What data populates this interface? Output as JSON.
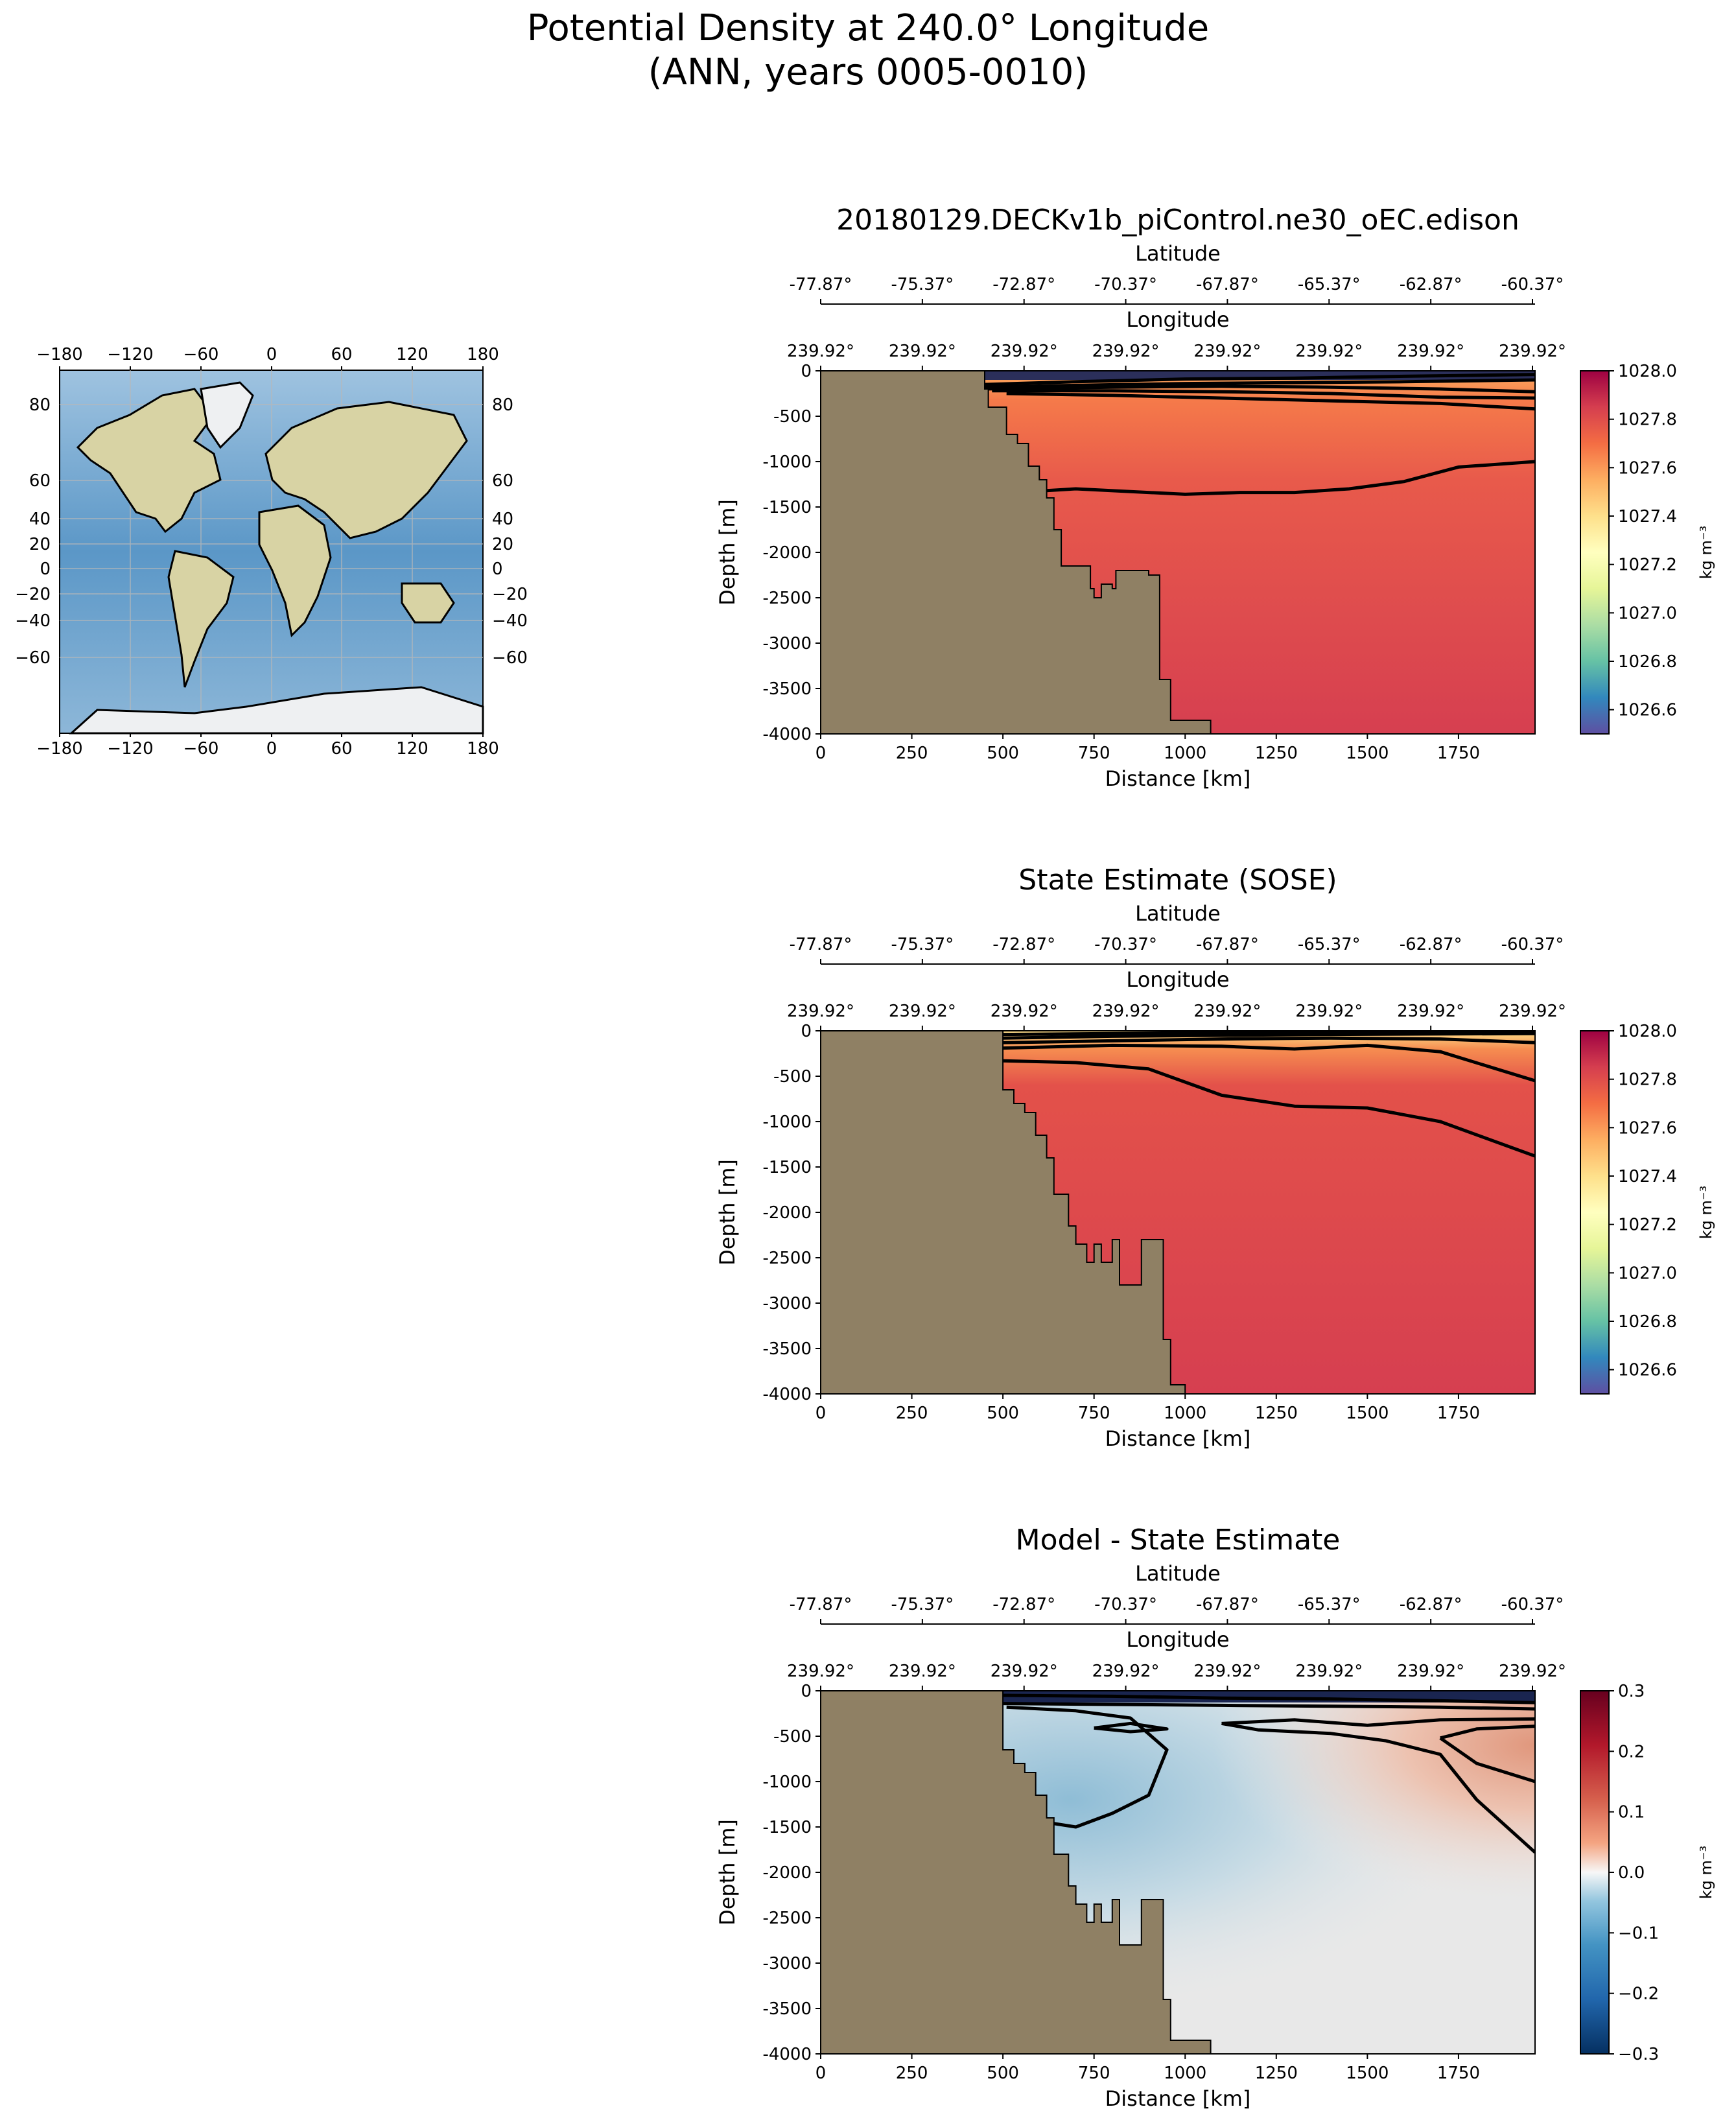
{
  "title_line1": "Potential Density at 240.0° Longitude",
  "title_line2": "(ANN, years 0005-0010)",
  "map": {
    "lon_ticks": [
      "−180",
      "−120",
      "−60",
      "0",
      "60",
      "120",
      "180"
    ],
    "lat_ticks_left": [
      "80",
      "60",
      "40",
      "20",
      "0",
      "−20",
      "−40",
      "−60"
    ],
    "lat_ticks_right": [
      "80",
      "60",
      "40",
      "20",
      "0",
      "−20",
      "−40",
      "−60"
    ]
  },
  "colors": {
    "land": "#8f8064",
    "ocean": "#6ea4cc",
    "contour": "#000000"
  },
  "chart_data": [
    {
      "type": "heatmap",
      "title": "20180129.DECKv1b_piControl.ne30_oEC.edison",
      "xlabel": "Distance [km]",
      "ylabel": "Depth [m]",
      "top_axis1_label": "Latitude",
      "top_axis1_ticks": [
        "-77.87°",
        "-75.37°",
        "-72.87°",
        "-70.37°",
        "-67.87°",
        "-65.37°",
        "-62.87°",
        "-60.37°"
      ],
      "top_axis2_label": "Longitude",
      "top_axis2_ticks": [
        "239.92°",
        "239.92°",
        "239.92°",
        "239.92°",
        "239.92°",
        "239.92°",
        "239.92°",
        "239.92°"
      ],
      "x_ticks": [
        "0",
        "250",
        "500",
        "750",
        "1000",
        "1250",
        "1500",
        "1750"
      ],
      "y_ticks": [
        "0",
        "-500",
        "-1000",
        "-1500",
        "-2000",
        "-2500",
        "-3000",
        "-3500",
        "-4000"
      ],
      "xlim": [
        0,
        1960
      ],
      "ylim": [
        -4000,
        0
      ],
      "colorbar": {
        "label": "kg m⁻³",
        "min": 1026.5,
        "max": 1028.0,
        "ticks": [
          "1026.6",
          "1026.8",
          "1027.0",
          "1027.2",
          "1027.4",
          "1027.6",
          "1027.8",
          "1028.0"
        ],
        "tick_values": [
          1026.6,
          1026.8,
          1027.0,
          1027.2,
          1027.4,
          1027.6,
          1027.8,
          1028.0
        ],
        "colormap": "Spectral_r"
      },
      "topography": [
        [
          0,
          0
        ],
        [
          450,
          0
        ],
        [
          450,
          -200
        ],
        [
          460,
          -200
        ],
        [
          460,
          -400
        ],
        [
          510,
          -400
        ],
        [
          510,
          -700
        ],
        [
          540,
          -700
        ],
        [
          540,
          -800
        ],
        [
          570,
          -800
        ],
        [
          570,
          -1050
        ],
        [
          600,
          -1050
        ],
        [
          600,
          -1200
        ],
        [
          620,
          -1200
        ],
        [
          620,
          -1400
        ],
        [
          640,
          -1400
        ],
        [
          640,
          -1750
        ],
        [
          660,
          -1750
        ],
        [
          660,
          -2150
        ],
        [
          740,
          -2150
        ],
        [
          740,
          -2400
        ],
        [
          750,
          -2400
        ],
        [
          750,
          -2500
        ],
        [
          770,
          -2500
        ],
        [
          770,
          -2350
        ],
        [
          800,
          -2350
        ],
        [
          800,
          -2400
        ],
        [
          810,
          -2400
        ],
        [
          810,
          -2200
        ],
        [
          830,
          -2200
        ],
        [
          830,
          -2200
        ],
        [
          900,
          -2200
        ],
        [
          900,
          -2250
        ],
        [
          930,
          -2250
        ],
        [
          930,
          -3400
        ],
        [
          960,
          -3400
        ],
        [
          960,
          -3850
        ],
        [
          1070,
          -3850
        ],
        [
          1070,
          -4000
        ],
        [
          0,
          -4000
        ]
      ],
      "contours": [
        [
          [
            450,
            -150
          ],
          [
            700,
            -120
          ],
          [
            1000,
            -90
          ],
          [
            1300,
            -80
          ],
          [
            1600,
            -60
          ],
          [
            1960,
            -40
          ]
        ],
        [
          [
            450,
            -180
          ],
          [
            700,
            -160
          ],
          [
            1000,
            -140
          ],
          [
            1300,
            -130
          ],
          [
            1600,
            -120
          ],
          [
            1960,
            -100
          ]
        ],
        [
          [
            450,
            -200
          ],
          [
            800,
            -180
          ],
          [
            1100,
            -170
          ],
          [
            1400,
            -180
          ],
          [
            1700,
            -200
          ],
          [
            1960,
            -230
          ]
        ],
        [
          [
            470,
            -220
          ],
          [
            800,
            -220
          ],
          [
            1100,
            -230
          ],
          [
            1400,
            -250
          ],
          [
            1700,
            -290
          ],
          [
            1960,
            -300
          ]
        ],
        [
          [
            510,
            -250
          ],
          [
            800,
            -270
          ],
          [
            1100,
            -300
          ],
          [
            1400,
            -330
          ],
          [
            1700,
            -360
          ],
          [
            1960,
            -420
          ]
        ],
        [
          [
            620,
            -1320
          ],
          [
            700,
            -1300
          ],
          [
            850,
            -1330
          ],
          [
            1000,
            -1360
          ],
          [
            1150,
            -1340
          ],
          [
            1300,
            -1340
          ],
          [
            1450,
            -1300
          ],
          [
            1600,
            -1220
          ],
          [
            1750,
            -1060
          ],
          [
            1960,
            -1000
          ]
        ]
      ],
      "field_note": "uniform ~1027.8 below 500 m; lighter near surface"
    },
    {
      "type": "heatmap",
      "title": "State Estimate (SOSE)",
      "xlabel": "Distance [km]",
      "ylabel": "Depth [m]",
      "top_axis1_label": "Latitude",
      "top_axis1_ticks": [
        "-77.87°",
        "-75.37°",
        "-72.87°",
        "-70.37°",
        "-67.87°",
        "-65.37°",
        "-62.87°",
        "-60.37°"
      ],
      "top_axis2_label": "Longitude",
      "top_axis2_ticks": [
        "239.92°",
        "239.92°",
        "239.92°",
        "239.92°",
        "239.92°",
        "239.92°",
        "239.92°",
        "239.92°"
      ],
      "x_ticks": [
        "0",
        "250",
        "500",
        "750",
        "1000",
        "1250",
        "1500",
        "1750"
      ],
      "y_ticks": [
        "0",
        "-500",
        "-1000",
        "-1500",
        "-2000",
        "-2500",
        "-3000",
        "-3500",
        "-4000"
      ],
      "xlim": [
        0,
        1960
      ],
      "ylim": [
        -4000,
        0
      ],
      "colorbar": {
        "label": "kg m⁻³",
        "min": 1026.5,
        "max": 1028.0,
        "ticks": [
          "1026.6",
          "1026.8",
          "1027.0",
          "1027.2",
          "1027.4",
          "1027.6",
          "1027.8",
          "1028.0"
        ],
        "tick_values": [
          1026.6,
          1026.8,
          1027.0,
          1027.2,
          1027.4,
          1027.6,
          1027.8,
          1028.0
        ],
        "colormap": "Spectral_r"
      },
      "topography": [
        [
          0,
          0
        ],
        [
          500,
          0
        ],
        [
          500,
          -650
        ],
        [
          530,
          -650
        ],
        [
          530,
          -800
        ],
        [
          560,
          -800
        ],
        [
          560,
          -900
        ],
        [
          590,
          -900
        ],
        [
          590,
          -1150
        ],
        [
          620,
          -1150
        ],
        [
          620,
          -1400
        ],
        [
          640,
          -1400
        ],
        [
          640,
          -1800
        ],
        [
          680,
          -1800
        ],
        [
          680,
          -2150
        ],
        [
          700,
          -2150
        ],
        [
          700,
          -2350
        ],
        [
          730,
          -2350
        ],
        [
          730,
          -2550
        ],
        [
          750,
          -2550
        ],
        [
          750,
          -2350
        ],
        [
          770,
          -2350
        ],
        [
          770,
          -2550
        ],
        [
          800,
          -2550
        ],
        [
          800,
          -2300
        ],
        [
          820,
          -2300
        ],
        [
          820,
          -2800
        ],
        [
          880,
          -2800
        ],
        [
          880,
          -2300
        ],
        [
          940,
          -2300
        ],
        [
          940,
          -3400
        ],
        [
          960,
          -3400
        ],
        [
          960,
          -3900
        ],
        [
          1000,
          -3900
        ],
        [
          1000,
          -4000
        ],
        [
          0,
          -4000
        ]
      ],
      "contours": [
        [
          [
            500,
            -40
          ],
          [
            800,
            -30
          ],
          [
            1100,
            -20
          ],
          [
            1400,
            -15
          ],
          [
            1960,
            -10
          ]
        ],
        [
          [
            500,
            -80
          ],
          [
            800,
            -60
          ],
          [
            1100,
            -50
          ],
          [
            1400,
            -40
          ],
          [
            1960,
            -30
          ]
        ],
        [
          [
            500,
            -130
          ],
          [
            800,
            -110
          ],
          [
            1100,
            -90
          ],
          [
            1400,
            -80
          ],
          [
            1700,
            -90
          ],
          [
            1960,
            -130
          ]
        ],
        [
          [
            500,
            -190
          ],
          [
            800,
            -160
          ],
          [
            1100,
            -170
          ],
          [
            1300,
            -200
          ],
          [
            1500,
            -160
          ],
          [
            1700,
            -230
          ],
          [
            1960,
            -550
          ]
        ],
        [
          [
            500,
            -330
          ],
          [
            700,
            -350
          ],
          [
            900,
            -420
          ],
          [
            1100,
            -710
          ],
          [
            1300,
            -830
          ],
          [
            1500,
            -850
          ],
          [
            1700,
            -1000
          ],
          [
            1960,
            -1380
          ]
        ]
      ],
      "field_note": "uniform ~1027.8 below 500 m; lighter near surface"
    },
    {
      "type": "heatmap",
      "title": "Model - State Estimate",
      "xlabel": "Distance [km]",
      "ylabel": "Depth [m]",
      "top_axis1_label": "Latitude",
      "top_axis1_ticks": [
        "-77.87°",
        "-75.37°",
        "-72.87°",
        "-70.37°",
        "-67.87°",
        "-65.37°",
        "-62.87°",
        "-60.37°"
      ],
      "top_axis2_label": "Longitude",
      "top_axis2_ticks": [
        "239.92°",
        "239.92°",
        "239.92°",
        "239.92°",
        "239.92°",
        "239.92°",
        "239.92°",
        "239.92°"
      ],
      "x_ticks": [
        "0",
        "250",
        "500",
        "750",
        "1000",
        "1250",
        "1500",
        "1750"
      ],
      "y_ticks": [
        "0",
        "-500",
        "-1000",
        "-1500",
        "-2000",
        "-2500",
        "-3000",
        "-3500",
        "-4000"
      ],
      "xlim": [
        0,
        1960
      ],
      "ylim": [
        -4000,
        0
      ],
      "colorbar": {
        "label": "kg m⁻³",
        "min": -0.3,
        "max": 0.3,
        "ticks": [
          "0.3",
          "0.2",
          "0.1",
          "0.0",
          "−0.1",
          "−0.2",
          "−0.3"
        ],
        "tick_values": [
          0.3,
          0.2,
          0.1,
          0.0,
          -0.1,
          -0.2,
          -0.3
        ],
        "colormap": "RdBu_r"
      },
      "topography": [
        [
          0,
          0
        ],
        [
          500,
          0
        ],
        [
          500,
          -650
        ],
        [
          530,
          -650
        ],
        [
          530,
          -800
        ],
        [
          560,
          -800
        ],
        [
          560,
          -900
        ],
        [
          590,
          -900
        ],
        [
          590,
          -1150
        ],
        [
          620,
          -1150
        ],
        [
          620,
          -1400
        ],
        [
          640,
          -1400
        ],
        [
          640,
          -1800
        ],
        [
          680,
          -1800
        ],
        [
          680,
          -2150
        ],
        [
          700,
          -2150
        ],
        [
          700,
          -2350
        ],
        [
          730,
          -2350
        ],
        [
          730,
          -2550
        ],
        [
          750,
          -2550
        ],
        [
          750,
          -2350
        ],
        [
          770,
          -2350
        ],
        [
          770,
          -2550
        ],
        [
          800,
          -2550
        ],
        [
          800,
          -2300
        ],
        [
          820,
          -2300
        ],
        [
          820,
          -2800
        ],
        [
          880,
          -2800
        ],
        [
          880,
          -2300
        ],
        [
          940,
          -2300
        ],
        [
          940,
          -3400
        ],
        [
          960,
          -3400
        ],
        [
          960,
          -3850
        ],
        [
          1070,
          -3850
        ],
        [
          1070,
          -4000
        ],
        [
          0,
          -4000
        ]
      ],
      "contours": [
        [
          [
            500,
            -50
          ],
          [
            800,
            -60
          ],
          [
            1100,
            -80
          ],
          [
            1400,
            -90
          ],
          [
            1700,
            -110
          ],
          [
            1960,
            -130
          ]
        ],
        [
          [
            500,
            -140
          ],
          [
            800,
            -150
          ],
          [
            1100,
            -160
          ],
          [
            1400,
            -170
          ],
          [
            1700,
            -180
          ],
          [
            1960,
            -200
          ]
        ],
        [
          [
            510,
            -180
          ],
          [
            700,
            -220
          ],
          [
            850,
            -300
          ],
          [
            950,
            -650
          ],
          [
            900,
            -1150
          ],
          [
            800,
            -1350
          ],
          [
            700,
            -1500
          ],
          [
            620,
            -1450
          ]
        ],
        [
          [
            750,
            -410
          ],
          [
            850,
            -360
          ],
          [
            950,
            -420
          ],
          [
            850,
            -450
          ],
          [
            750,
            -410
          ]
        ],
        [
          [
            1100,
            -360
          ],
          [
            1300,
            -320
          ],
          [
            1500,
            -380
          ],
          [
            1700,
            -320
          ],
          [
            1960,
            -310
          ]
        ],
        [
          [
            1700,
            -520
          ],
          [
            1800,
            -420
          ],
          [
            1960,
            -390
          ]
        ],
        [
          [
            1700,
            -520
          ],
          [
            1800,
            -800
          ],
          [
            1960,
            -1000
          ]
        ],
        [
          [
            1100,
            -360
          ],
          [
            1200,
            -430
          ],
          [
            1400,
            -470
          ],
          [
            1550,
            -550
          ],
          [
            1700,
            -700
          ],
          [
            1800,
            -1200
          ],
          [
            1960,
            -1780
          ]
        ]
      ],
      "field_note": "negative (blue) upper-west, positive (red) upper-east, ~0 at depth"
    }
  ]
}
